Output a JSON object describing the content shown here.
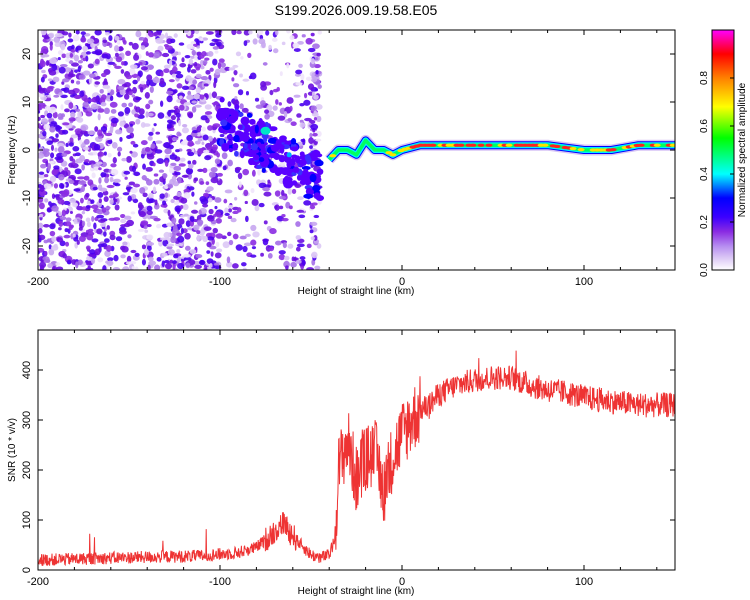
{
  "title": "S199.2026.009.19.58.E05",
  "chart_data": [
    {
      "type": "heatmap",
      "name": "spectrogram",
      "xlabel": "Height of straight line (km)",
      "ylabel": "Frequency (Hz)",
      "xlim": [
        -200,
        150
      ],
      "ylim": [
        -25,
        25
      ],
      "xticks": [
        -200,
        -100,
        0,
        100
      ],
      "xtick_labels": [
        "-200",
        "-100",
        "0",
        "100"
      ],
      "yticks": [
        -20,
        -10,
        0,
        10,
        20
      ],
      "ytick_labels": [
        "-20",
        "-10",
        "0",
        "10",
        "20"
      ],
      "colorbar": {
        "label": "Normalized spectral amplitude",
        "range": [
          0.0,
          1.0
        ],
        "ticks": [
          0.0,
          0.2,
          0.4,
          0.6,
          0.8
        ],
        "tick_labels": [
          "0.0",
          "0.2",
          "0.4",
          "0.6",
          "0.8"
        ],
        "colors": [
          "#ffffff",
          "#dcc8f5",
          "#b68cf0",
          "#8a2be2",
          "#5a00ff",
          "#0000ff",
          "#00ffff",
          "#00ff00",
          "#ffff00",
          "#ff8000",
          "#ff0000",
          "#ff00ff"
        ]
      },
      "ridge": {
        "description_points_x": [
          -40,
          -35,
          -30,
          -25,
          -20,
          -15,
          -10,
          -5,
          0,
          10,
          20,
          40,
          60,
          80,
          100,
          115,
          130,
          150
        ],
        "description_points_y": [
          -2,
          0,
          0,
          -1,
          2,
          0,
          0,
          -1,
          0,
          1,
          1,
          1,
          1,
          1,
          0,
          0,
          1,
          1
        ],
        "scatter_region_x": [
          -200,
          -45
        ],
        "scatter_region_y": [
          -25,
          25
        ],
        "burst_center_x": -75,
        "burst_center_y": 4
      }
    },
    {
      "type": "line",
      "name": "snr",
      "xlabel": "Height of straight line (km)",
      "ylabel": "SNR (10 * v/v)",
      "xlim": [
        -200,
        150
      ],
      "ylim": [
        0,
        480
      ],
      "xticks": [
        -200,
        -100,
        0,
        100
      ],
      "xtick_labels": [
        "-200",
        "-100",
        "0",
        "100"
      ],
      "yticks": [
        0,
        100,
        200,
        300,
        400
      ],
      "ytick_labels": [
        "0",
        "100",
        "200",
        "300",
        "400"
      ],
      "color": "#ee3333",
      "trend_x": [
        -200,
        -150,
        -110,
        -90,
        -80,
        -72,
        -65,
        -58,
        -50,
        -45,
        -40,
        -37,
        -35,
        -30,
        -25,
        -20,
        -15,
        -10,
        -5,
        0,
        5,
        10,
        15,
        20,
        30,
        40,
        50,
        60,
        70,
        80,
        90,
        100,
        110,
        120,
        130,
        140,
        150
      ],
      "trend_y": [
        20,
        25,
        28,
        35,
        45,
        70,
        95,
        60,
        30,
        25,
        30,
        60,
        200,
        260,
        180,
        220,
        240,
        160,
        230,
        270,
        300,
        320,
        330,
        350,
        370,
        380,
        385,
        385,
        370,
        360,
        355,
        345,
        340,
        335,
        330,
        330,
        330
      ],
      "noise_amplitude": 25
    }
  ]
}
